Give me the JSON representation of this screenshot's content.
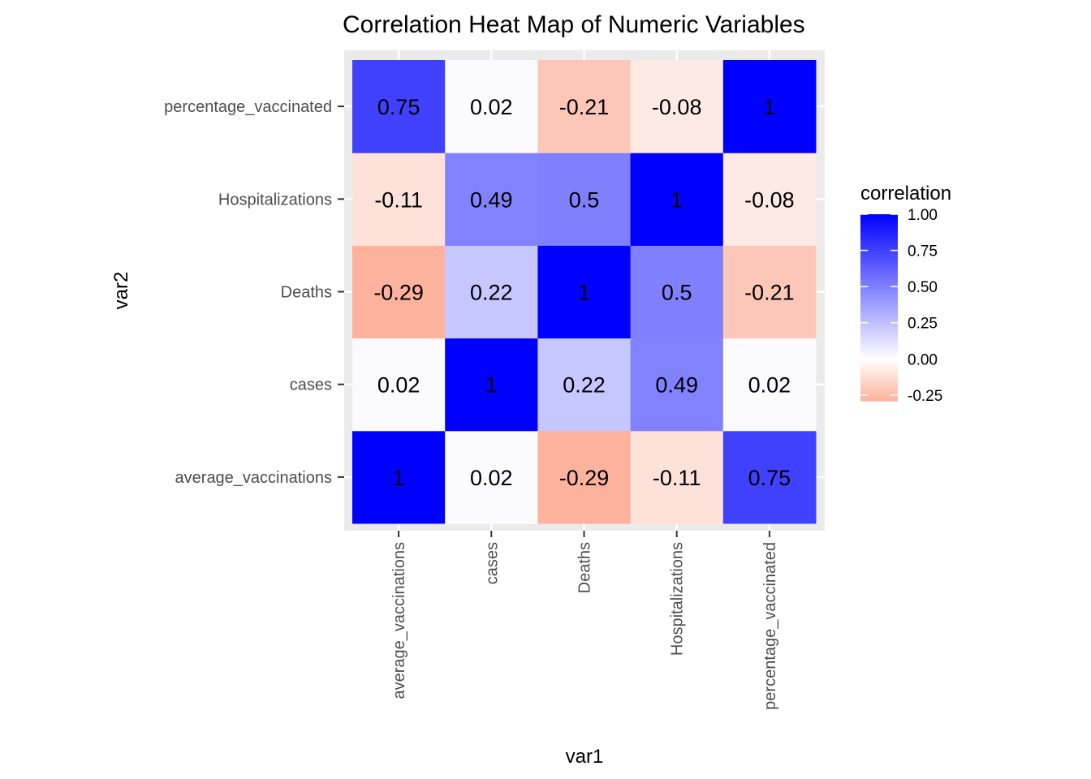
{
  "chart_data": {
    "type": "heatmap",
    "title": "Correlation Heat Map of Numeric Variables",
    "xlabel": "var1",
    "ylabel": "var2",
    "x_categories": [
      "average_vaccinations",
      "cases",
      "Deaths",
      "Hospitalizations",
      "percentage_vaccinated"
    ],
    "y_categories": [
      "average_vaccinations",
      "cases",
      "Deaths",
      "Hospitalizations",
      "percentage_vaccinated"
    ],
    "cells": [
      {
        "x": "average_vaccinations",
        "y": "average_vaccinations",
        "value": 1,
        "label": "1"
      },
      {
        "x": "average_vaccinations",
        "y": "cases",
        "value": 0.02,
        "label": "0.02"
      },
      {
        "x": "average_vaccinations",
        "y": "Deaths",
        "value": -0.29,
        "label": "-0.29"
      },
      {
        "x": "average_vaccinations",
        "y": "Hospitalizations",
        "value": -0.11,
        "label": "-0.11"
      },
      {
        "x": "average_vaccinations",
        "y": "percentage_vaccinated",
        "value": 0.75,
        "label": "0.75"
      },
      {
        "x": "cases",
        "y": "average_vaccinations",
        "value": 0.02,
        "label": "0.02"
      },
      {
        "x": "cases",
        "y": "cases",
        "value": 1,
        "label": "1"
      },
      {
        "x": "cases",
        "y": "Deaths",
        "value": 0.22,
        "label": "0.22"
      },
      {
        "x": "cases",
        "y": "Hospitalizations",
        "value": 0.49,
        "label": "0.49"
      },
      {
        "x": "cases",
        "y": "percentage_vaccinated",
        "value": 0.02,
        "label": "0.02"
      },
      {
        "x": "Deaths",
        "y": "average_vaccinations",
        "value": -0.29,
        "label": "-0.29"
      },
      {
        "x": "Deaths",
        "y": "cases",
        "value": 0.22,
        "label": "0.22"
      },
      {
        "x": "Deaths",
        "y": "Deaths",
        "value": 1,
        "label": "1"
      },
      {
        "x": "Deaths",
        "y": "Hospitalizations",
        "value": 0.5,
        "label": "0.5"
      },
      {
        "x": "Deaths",
        "y": "percentage_vaccinated",
        "value": -0.21,
        "label": "-0.21"
      },
      {
        "x": "Hospitalizations",
        "y": "average_vaccinations",
        "value": -0.11,
        "label": "-0.11"
      },
      {
        "x": "Hospitalizations",
        "y": "cases",
        "value": 0.49,
        "label": "0.49"
      },
      {
        "x": "Hospitalizations",
        "y": "Deaths",
        "value": 0.5,
        "label": "0.5"
      },
      {
        "x": "Hospitalizations",
        "y": "Hospitalizations",
        "value": 1,
        "label": "1"
      },
      {
        "x": "Hospitalizations",
        "y": "percentage_vaccinated",
        "value": -0.08,
        "label": "-0.08"
      },
      {
        "x": "percentage_vaccinated",
        "y": "average_vaccinations",
        "value": 0.75,
        "label": "0.75"
      },
      {
        "x": "percentage_vaccinated",
        "y": "cases",
        "value": 0.02,
        "label": "0.02"
      },
      {
        "x": "percentage_vaccinated",
        "y": "Deaths",
        "value": -0.21,
        "label": "-0.21"
      },
      {
        "x": "percentage_vaccinated",
        "y": "Hospitalizations",
        "value": -0.08,
        "label": "-0.08"
      },
      {
        "x": "percentage_vaccinated",
        "y": "percentage_vaccinated",
        "value": 1,
        "label": "1"
      }
    ],
    "legend": {
      "title": "correlation",
      "position": "right",
      "breaks": [
        1.0,
        0.75,
        0.5,
        0.25,
        0.0,
        -0.25
      ],
      "break_labels": [
        "1.00",
        "0.75",
        "0.50",
        "0.25",
        "0.00",
        "-0.25"
      ],
      "range": [
        -0.29,
        1.0
      ]
    },
    "colors": {
      "low": "#fcb29c",
      "mid": "#ffffff",
      "high": "#0000ff",
      "panel_background": "#ebebeb",
      "grid": "#ffffff"
    },
    "grid": true
  }
}
